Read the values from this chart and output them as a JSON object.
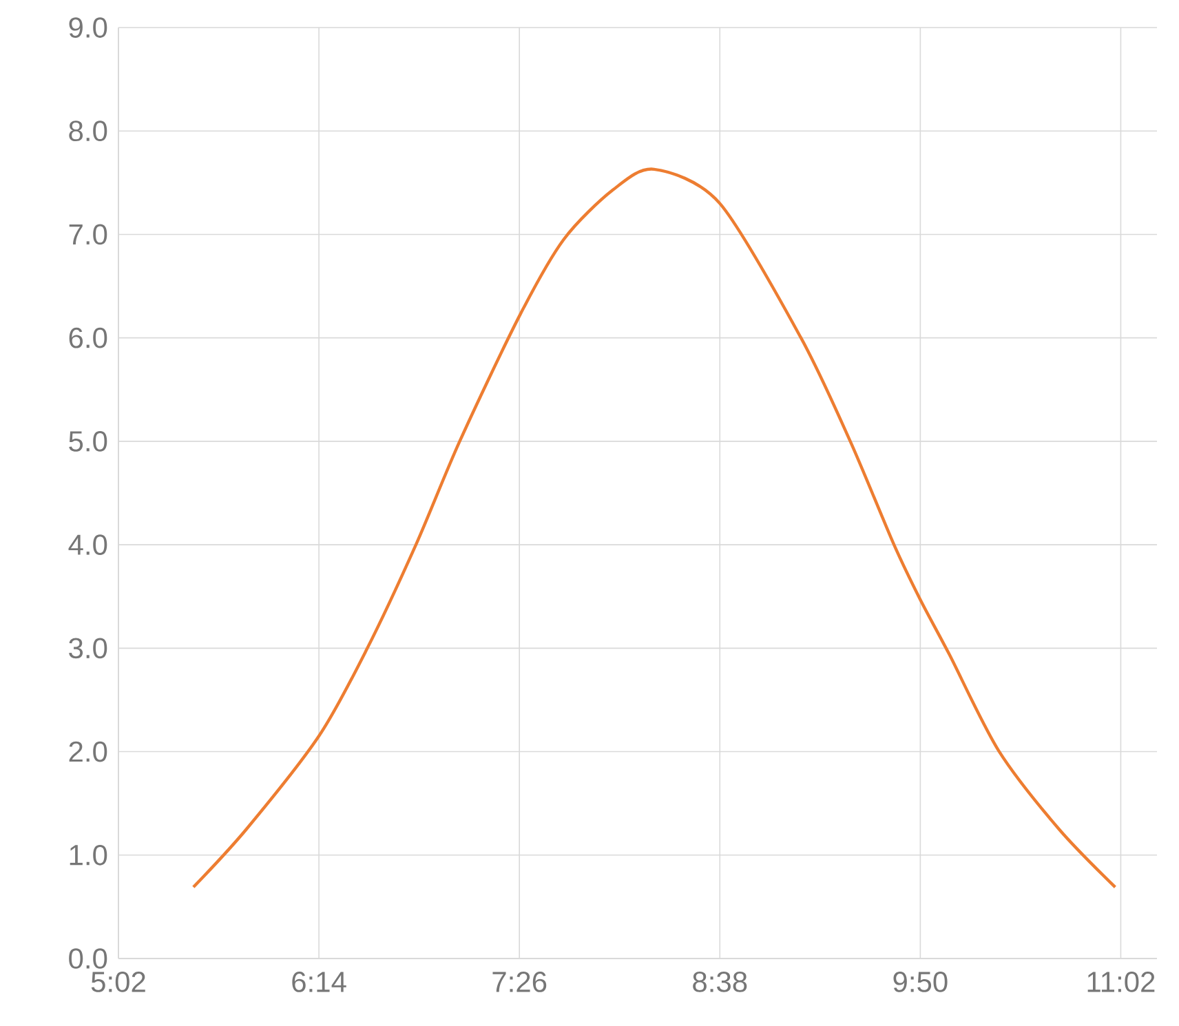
{
  "chart_data": {
    "type": "line",
    "x": [
      5.482,
      5.799,
      6.233,
      6.52,
      6.814,
      7.076,
      7.433,
      7.698,
      7.993,
      8.24,
      8.633,
      9.119,
      9.414,
      9.676,
      9.833,
      10.007,
      10.302,
      10.664,
      11.0
    ],
    "series": [
      {
        "color": "#ed7d31",
        "values": [
          0.69,
          1.25,
          2.15,
          2.99,
          4.0,
          5.0,
          6.21,
          6.95,
          7.43,
          7.63,
          7.3,
          6.0,
          5.0,
          4.0,
          3.47,
          2.94,
          2.01,
          1.25,
          0.69
        ]
      }
    ],
    "xlim": [
      5.0333,
      11.25
    ],
    "xticks": [
      {
        "value": 5.0333,
        "label": "5:02"
      },
      {
        "value": 6.2333,
        "label": "6:14"
      },
      {
        "value": 7.4333,
        "label": "7:26"
      },
      {
        "value": 8.6333,
        "label": "8:38"
      },
      {
        "value": 9.8333,
        "label": "9:50"
      },
      {
        "value": 11.0333,
        "label": "11:02"
      }
    ],
    "ylim": [
      0,
      9
    ],
    "yticks": [
      {
        "value": 0,
        "label": "0.0"
      },
      {
        "value": 1,
        "label": "1.0"
      },
      {
        "value": 2,
        "label": "2.0"
      },
      {
        "value": 3,
        "label": "3.0"
      },
      {
        "value": 4,
        "label": "4.0"
      },
      {
        "value": 5,
        "label": "5.0"
      },
      {
        "value": 6,
        "label": "6.0"
      },
      {
        "value": 7,
        "label": "7.0"
      },
      {
        "value": 8,
        "label": "8.0"
      },
      {
        "value": 9,
        "label": "9.0"
      }
    ],
    "grid": true,
    "marker": "none",
    "line_style": "solid"
  }
}
